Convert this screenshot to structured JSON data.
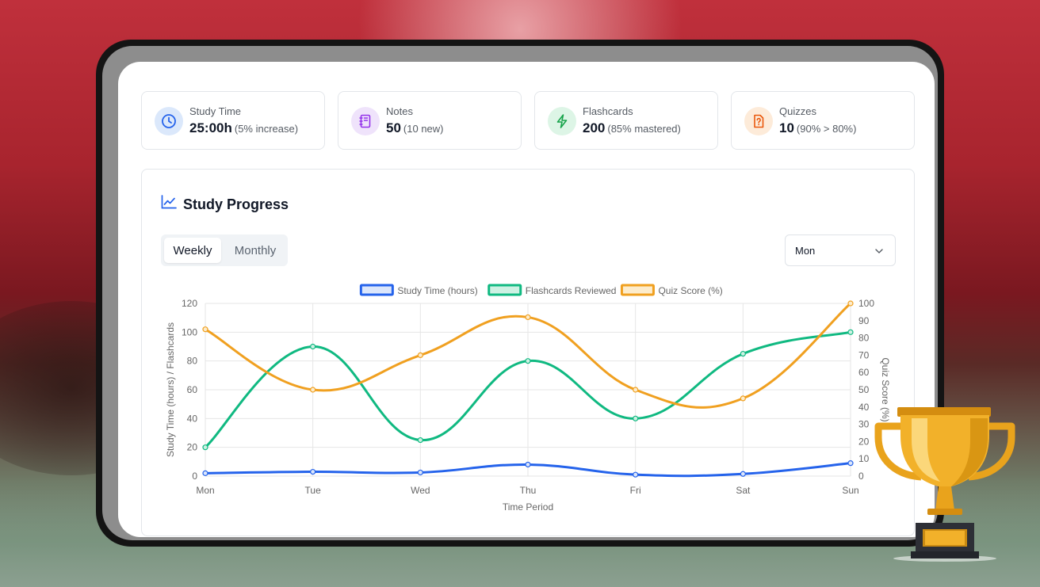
{
  "stats": [
    {
      "label": "Study Time",
      "value": "25:00h",
      "sub": "(5% increase)",
      "icon": "clock-icon",
      "color": "#2563eb",
      "bg": "#dbe8fb"
    },
    {
      "label": "Notes",
      "value": "50",
      "sub": "(10 new)",
      "icon": "notebook-icon",
      "color": "#9333ea",
      "bg": "#efe3fb"
    },
    {
      "label": "Flashcards",
      "value": "200",
      "sub": "(85% mastered)",
      "icon": "lightning-icon",
      "color": "#16a34a",
      "bg": "#ddf5e6"
    },
    {
      "label": "Quizzes",
      "value": "10",
      "sub": "(90% > 80%)",
      "icon": "quiz-icon",
      "color": "#ea580c",
      "bg": "#fdebd9"
    }
  ],
  "panel": {
    "title": "Study Progress",
    "tabs": [
      {
        "label": "Weekly",
        "active": true
      },
      {
        "label": "Monthly",
        "active": false
      }
    ],
    "dropdown": {
      "value": "Mon"
    }
  },
  "chart_data": {
    "type": "line",
    "categories": [
      "Mon",
      "Tue",
      "Wed",
      "Thu",
      "Fri",
      "Sat",
      "Sun"
    ],
    "xlabel": "Time Period",
    "ylabel": "Study Time (hours) / Flashcards",
    "y2label": "Quiz Score (%)",
    "ylim": [
      0,
      120
    ],
    "y2lim": [
      0,
      100
    ],
    "yticks": [
      0,
      20,
      40,
      60,
      80,
      100,
      120
    ],
    "y2ticks": [
      0,
      10,
      20,
      30,
      40,
      50,
      60,
      70,
      80,
      90,
      100
    ],
    "grid": true,
    "legend": "top",
    "series": [
      {
        "name": "Study Time (hours)",
        "axis": "left",
        "color": "#2563eb",
        "fill": "#dbe6fb",
        "values": [
          2,
          3,
          2.5,
          8,
          1,
          1.5,
          9
        ]
      },
      {
        "name": "Flashcards Reviewed",
        "axis": "left",
        "color": "#10b981",
        "fill": "#cdf1e3",
        "values": [
          20,
          90,
          25,
          80,
          40,
          85,
          100
        ]
      },
      {
        "name": "Quiz Score (%)",
        "axis": "right",
        "color": "#f0a020",
        "fill": "#fdeccb",
        "values": [
          85,
          50,
          70,
          92,
          50,
          45,
          100
        ]
      }
    ]
  }
}
